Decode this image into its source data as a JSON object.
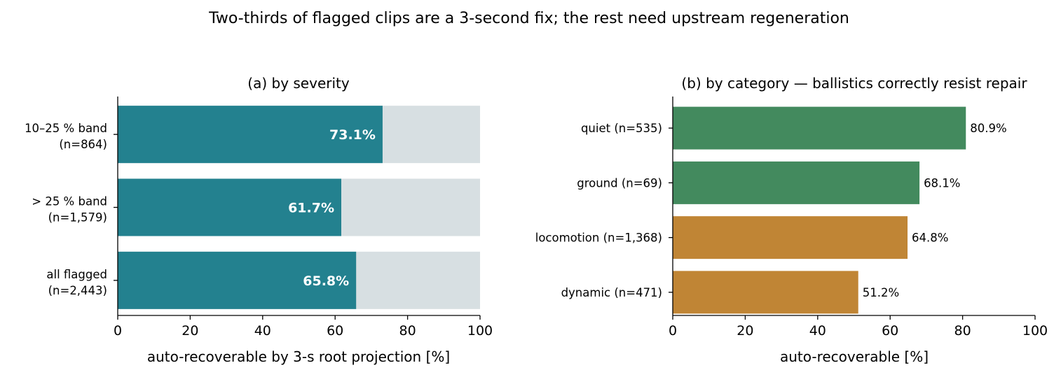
{
  "suptitle": "Two-thirds of flagged clips are a 3-second fix; the rest need upstream regeneration",
  "colors": {
    "severity_bar": "#23818f",
    "track": "#d7dfe2",
    "good": "#438a5e",
    "warn": "#c08535"
  },
  "chart_data": [
    {
      "type": "bar",
      "orientation": "horizontal",
      "title": "(a) by severity",
      "xlabel": "auto-recoverable by 3-s root projection [%]",
      "xlim": [
        0,
        100
      ],
      "xticks": [
        "0",
        "20",
        "40",
        "60",
        "80",
        "100"
      ],
      "background_track_value": 100,
      "categories": [
        {
          "line1": "10–25 % band",
          "line2": "(n=864)"
        },
        {
          "line1": "> 25 % band",
          "line2": "(n=1,579)"
        },
        {
          "line1": "all flagged",
          "line2": "(n=2,443)"
        }
      ],
      "values": [
        73.1,
        61.7,
        65.8
      ],
      "labels": [
        "73.1%",
        "61.7%",
        "65.8%"
      ],
      "label_position": "inside-end",
      "grid": false
    },
    {
      "type": "bar",
      "orientation": "horizontal",
      "title": "(b) by category — ballistics correctly resist repair",
      "xlabel": "auto-recoverable [%]",
      "xlim": [
        0,
        100
      ],
      "xticks": [
        "0",
        "20",
        "40",
        "60",
        "80",
        "100"
      ],
      "categories": [
        "quiet (n=535)",
        "ground (n=69)",
        "locomotion (n=1,368)",
        "dynamic (n=471)"
      ],
      "values": [
        80.9,
        68.1,
        64.8,
        51.2
      ],
      "labels": [
        "80.9%",
        "68.1%",
        "64.8%",
        "51.2%"
      ],
      "bar_colors": [
        "good",
        "good",
        "warn",
        "warn"
      ],
      "label_position": "outside-end",
      "grid": false
    }
  ]
}
